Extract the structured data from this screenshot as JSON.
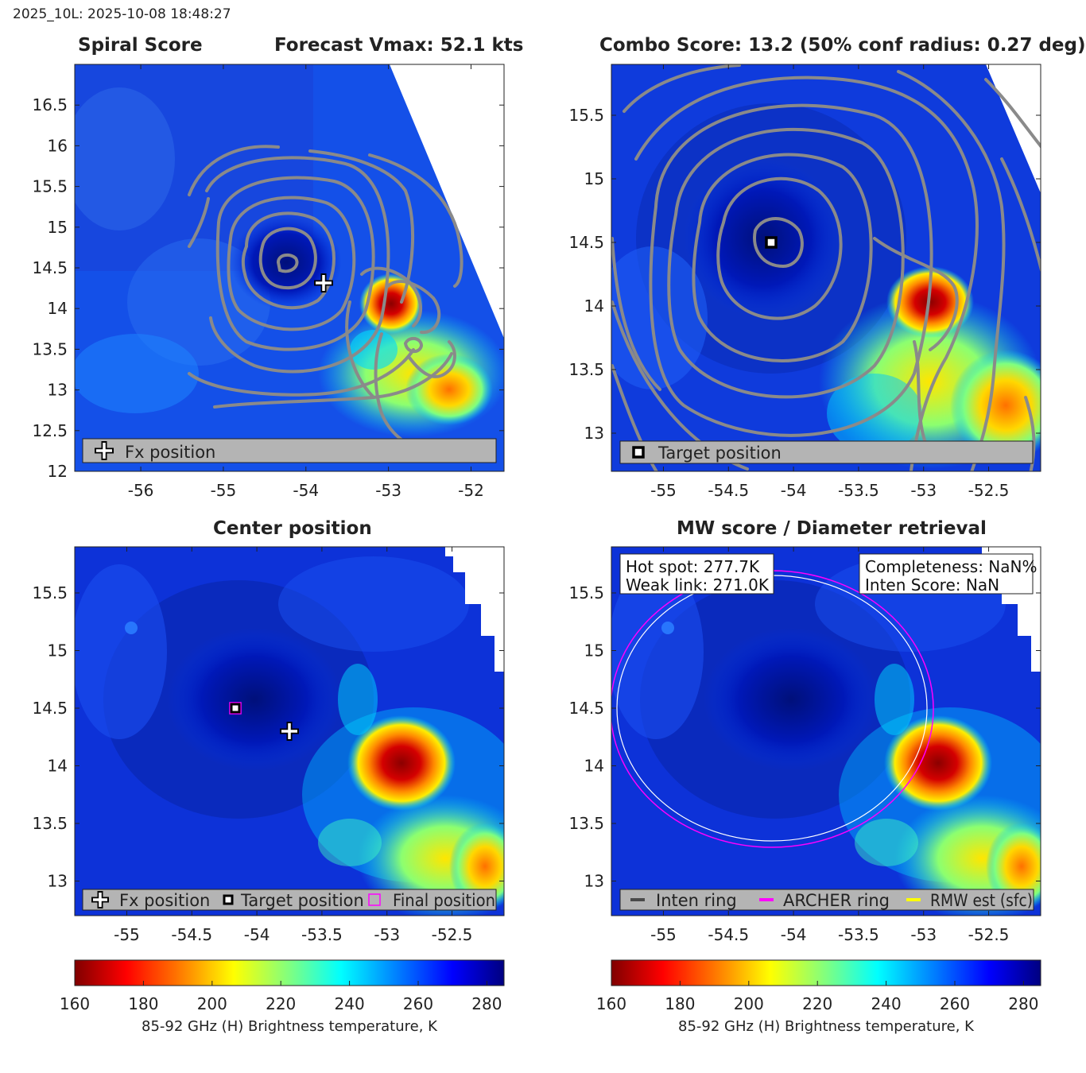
{
  "suptitle": "2025_10L: 2025-10-08 18:48:27",
  "panels": [
    {
      "id": "spiral",
      "title_left": "Spiral Score",
      "title_right": "Forecast Vmax: 52.1 kts",
      "xlim": [
        -56.8,
        -51.6
      ],
      "ylim": [
        12,
        17
      ],
      "xticks": [
        -56,
        -55,
        -54,
        -53,
        -52
      ],
      "yticks": [
        12,
        12.5,
        13,
        13.5,
        14,
        14.5,
        15,
        15.5,
        16,
        16.5
      ],
      "legend": [
        {
          "icon": "plus-icon",
          "label": "Fx position"
        }
      ]
    },
    {
      "id": "combo",
      "title": "Combo Score: 13.2  (50% conf radius: 0.27 deg)",
      "xlim": [
        -55.4,
        -52.1
      ],
      "ylim": [
        12.7,
        15.9
      ],
      "xticks": [
        -55,
        -54.5,
        -54,
        -53.5,
        -53,
        -52.5
      ],
      "yticks": [
        13,
        13.5,
        14,
        14.5,
        15,
        15.5
      ],
      "legend": [
        {
          "icon": "square-icon",
          "label": "Target position"
        }
      ]
    },
    {
      "id": "center",
      "title": "Center position",
      "xlim": [
        -55.4,
        -52.1
      ],
      "ylim": [
        12.7,
        15.9
      ],
      "xticks": [
        -55,
        -54.5,
        -54,
        -53.5,
        -53,
        -52.5
      ],
      "yticks": [
        13,
        13.5,
        14,
        14.5,
        15,
        15.5
      ],
      "legend": [
        {
          "icon": "plus-icon",
          "label": "Fx position"
        },
        {
          "icon": "square-icon",
          "label": "Target position"
        },
        {
          "icon": "magenta-square-icon",
          "label": "Final position"
        }
      ]
    },
    {
      "id": "mw",
      "title": "MW score / Diameter retrieval",
      "xlim": [
        -55.4,
        -52.1
      ],
      "ylim": [
        12.7,
        15.9
      ],
      "xticks": [
        -55,
        -54.5,
        -54,
        -53.5,
        -53,
        -52.5
      ],
      "yticks": [
        13,
        13.5,
        14,
        14.5,
        15,
        15.5
      ],
      "info_left": [
        "Hot spot: 277.7K",
        "Weak link: 271.0K"
      ],
      "info_right": [
        "Completeness: NaN%",
        "Inten Score: NaN"
      ],
      "legend": [
        {
          "icon": "gray-line-icon",
          "label": "Inten ring"
        },
        {
          "icon": "magenta-line-icon",
          "label": "ARCHER ring"
        },
        {
          "icon": "yellow-line-icon",
          "label": "RMW est (sfc)"
        }
      ]
    }
  ],
  "colorbar": {
    "ticks": [
      160,
      180,
      200,
      220,
      240,
      260,
      280
    ],
    "range": [
      160,
      285
    ],
    "label": "85-92 GHz (H) Brightness temperature, K",
    "colormap": "jet_r"
  },
  "chart_data": {
    "type": "heatmap",
    "variable": "85-92 GHz (H) Brightness temperature, K",
    "markers": {
      "fx_position": {
        "lon": -53.8,
        "lat": 14.3
      },
      "target_position": {
        "lon": -54.2,
        "lat": 14.5
      },
      "final_position": {
        "lon": -54.2,
        "lat": 14.5
      }
    },
    "cold_features": [
      {
        "lon": -52.9,
        "lat": 14.0,
        "tb": 165
      },
      {
        "lon": -52.4,
        "lat": 13.1,
        "tb": 185
      },
      {
        "lon": -52.7,
        "lat": 13.3,
        "tb": 205
      }
    ],
    "rings": {
      "archer_ring": {
        "center_lon": -54.2,
        "center_lat": 14.48,
        "radius_deg": 1.25,
        "color": "#ff00ff"
      },
      "inten_ring": {
        "center_lon": -54.2,
        "center_lat": 14.48,
        "radius_deg": 1.2,
        "color": "#ffffff"
      }
    },
    "hot_spot_K": 277.7,
    "weak_link_K": 271.0
  }
}
